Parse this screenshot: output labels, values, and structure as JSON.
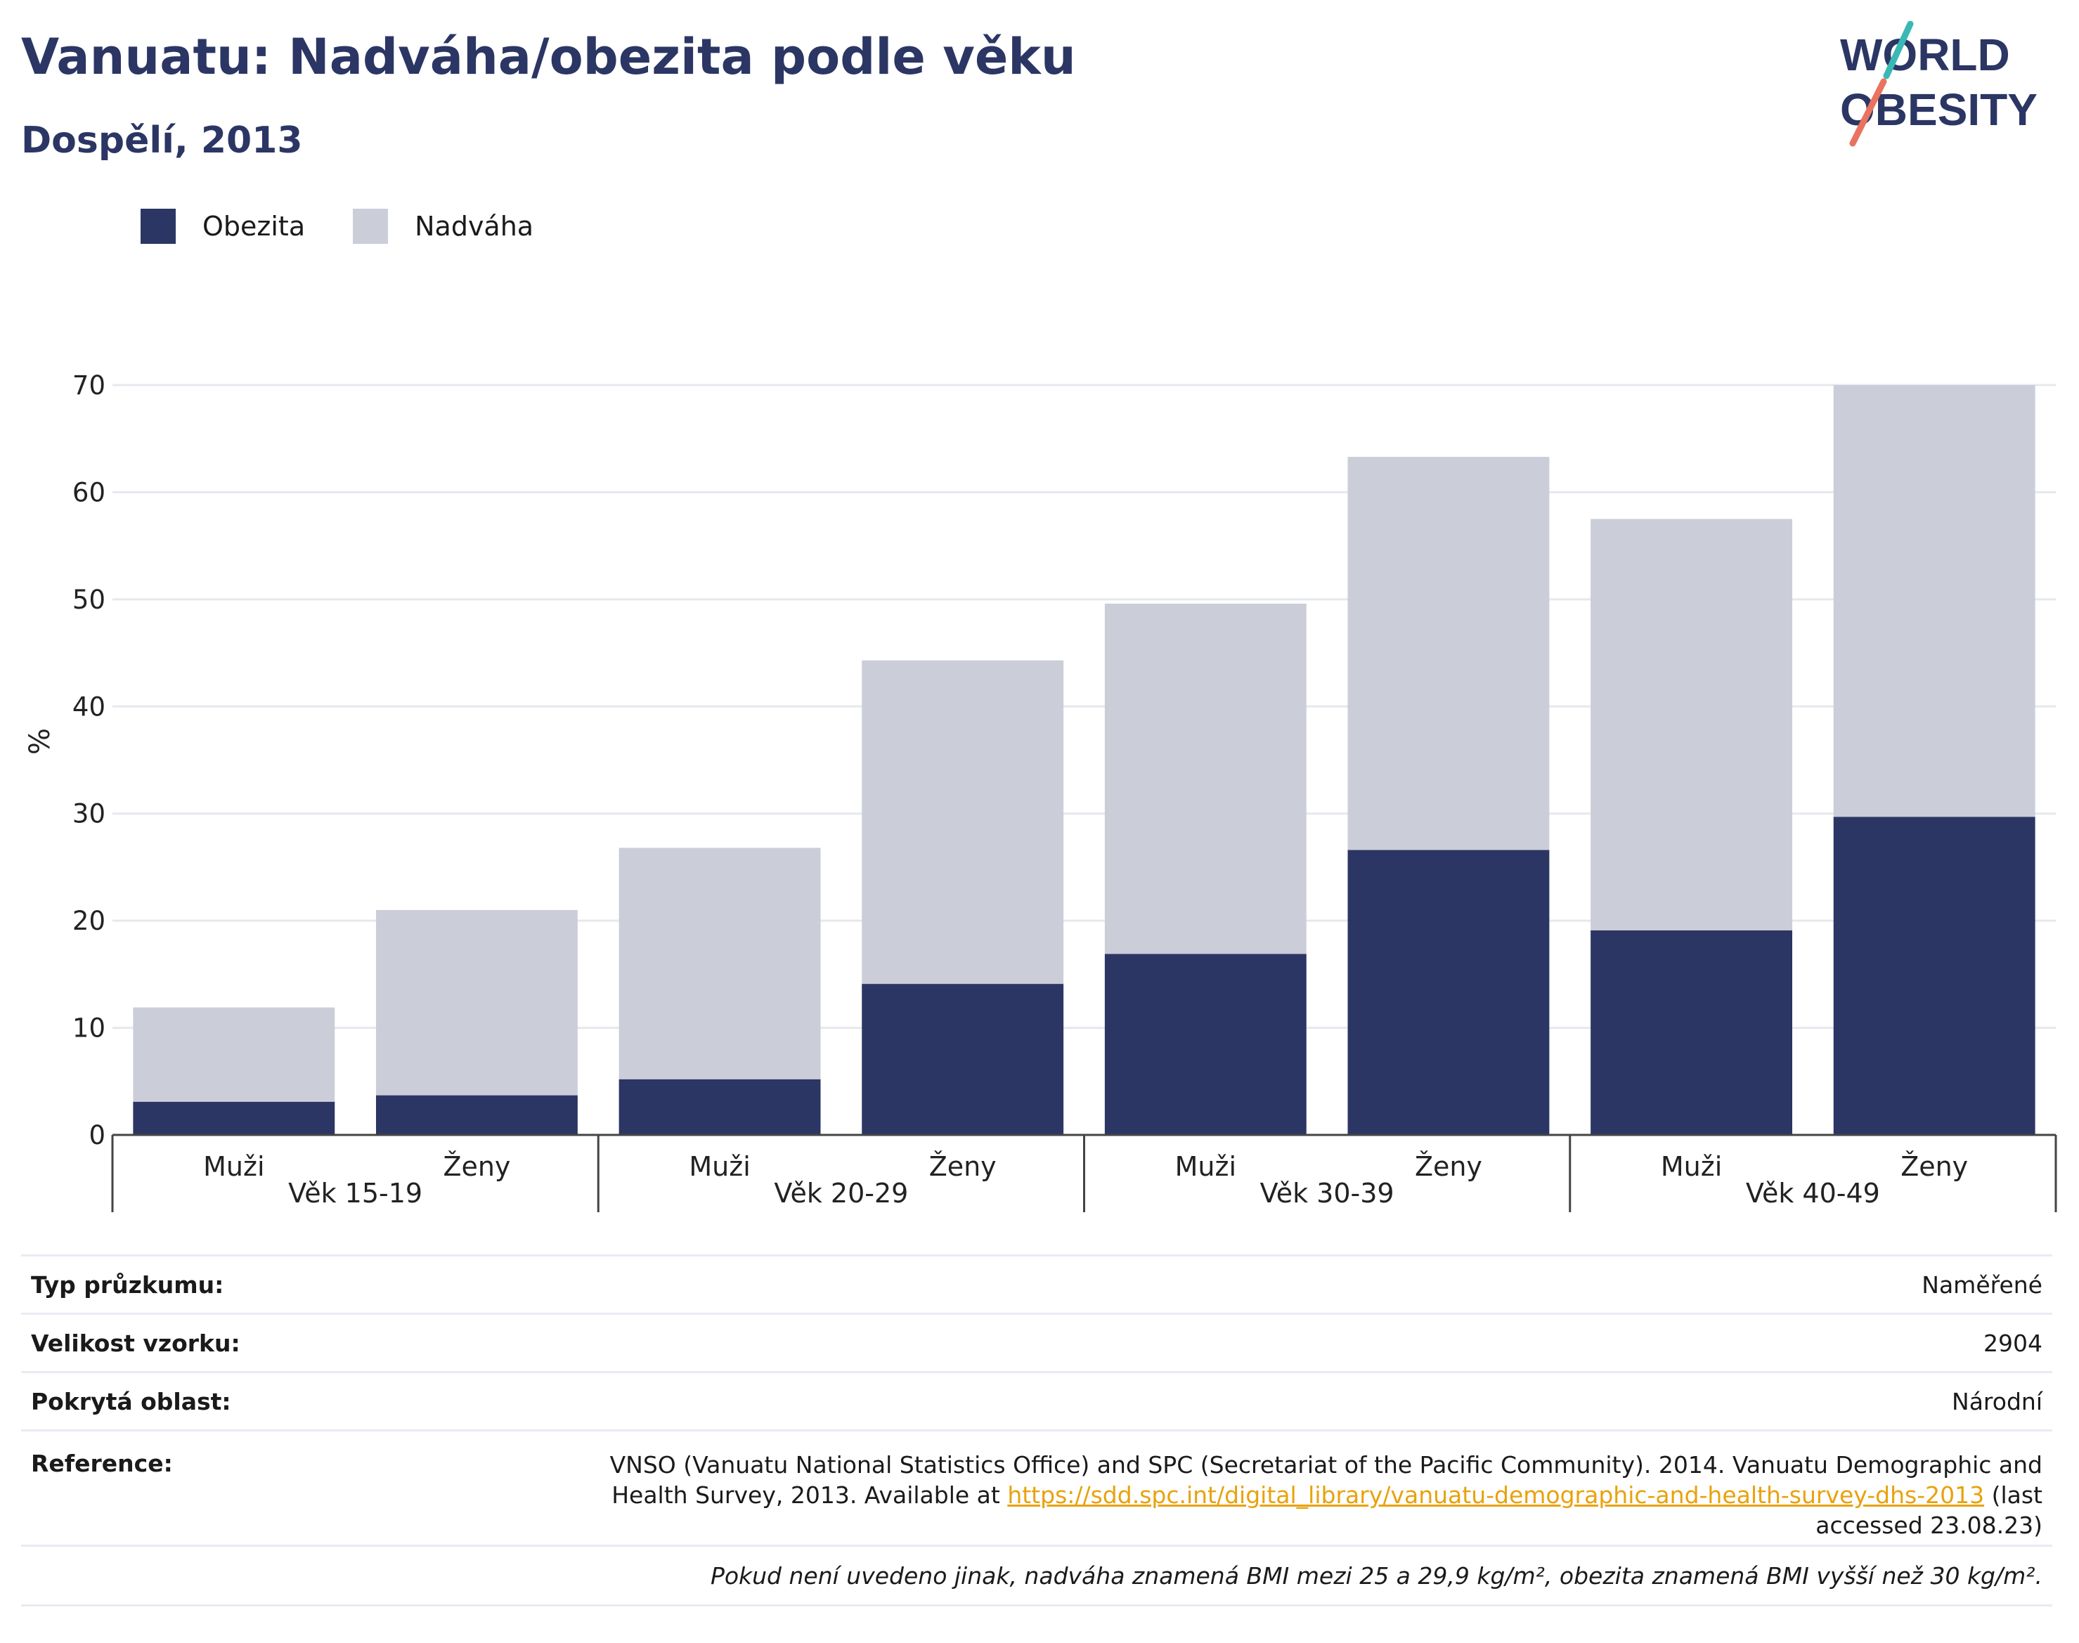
{
  "header": {
    "title": "Vanuatu: Nadváha/obezita podle věku",
    "subtitle": "Dospělí, 2013"
  },
  "logo": {
    "line1": "WORLD",
    "line2": "OBESITY",
    "colors": {
      "text": "#2b3664",
      "slash_top": "#3ab8b5",
      "slash_bottom": "#e8735f"
    }
  },
  "legend": [
    {
      "label": "Obezita",
      "color": "#2b3664"
    },
    {
      "label": "Nadváha",
      "color": "#cbcdd8"
    }
  ],
  "chart_data": {
    "type": "bar",
    "stacked": true,
    "ylabel": "%",
    "ylim": [
      0,
      70
    ],
    "yticks": [
      0,
      10,
      20,
      30,
      40,
      50,
      60,
      70
    ],
    "grid": true,
    "legend_position": "top-left",
    "groups": [
      "Věk 15-19",
      "Věk 20-29",
      "Věk 30-39",
      "Věk 40-49"
    ],
    "categories": [
      "Muži",
      "Ženy",
      "Muži",
      "Ženy",
      "Muži",
      "Ženy",
      "Muži",
      "Ženy"
    ],
    "series": [
      {
        "name": "Obezita",
        "color": "#2b3664",
        "values": [
          3.1,
          3.7,
          5.2,
          14.1,
          16.9,
          26.6,
          19.1,
          29.7
        ]
      },
      {
        "name": "Nadváha",
        "color": "#cbcdd8",
        "values": [
          8.8,
          17.3,
          21.6,
          30.2,
          32.7,
          36.7,
          38.4,
          40.3
        ]
      }
    ]
  },
  "info": {
    "survey_type_label": "Typ průzkumu:",
    "survey_type_value": "Naměřené",
    "sample_size_label": "Velikost vzorku:",
    "sample_size_value": "2904",
    "area_label": "Pokrytá oblast:",
    "area_value": "Národní",
    "reference_label": "Reference:",
    "reference_text_before": "VNSO (Vanuatu National Statistics Office) and SPC (Secretariat of the Pacific Community). 2014. Vanuatu Demographic and Health Survey, 2013. Available at ",
    "reference_link": "https://sdd.spc.int/digital_library/vanuatu-demographic-and-health-survey-dhs-2013",
    "reference_text_after": " (last accessed 23.08.23)",
    "note": "Pokud není uvedeno jinak, nadváha znamená BMI mezi 25 a 29,9 kg/m², obezita znamená BMI vyšší než 30 kg/m²."
  }
}
